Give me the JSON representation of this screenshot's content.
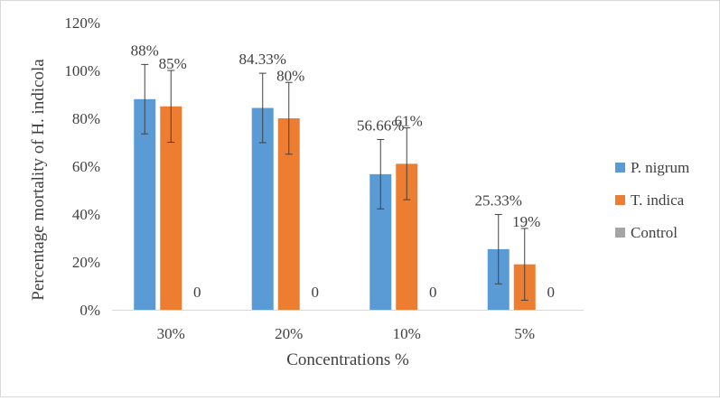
{
  "chart_data": {
    "type": "bar",
    "title": "",
    "xlabel": "Concentrations %",
    "ylabel": "Percentage mortality of H. indicola",
    "categories": [
      "30%",
      "20%",
      "10%",
      "5%"
    ],
    "ylim": [
      0,
      120
    ],
    "y_ticks": [
      0,
      20,
      40,
      60,
      80,
      100,
      120
    ],
    "y_tick_labels": [
      "0%",
      "20%",
      "40%",
      "60%",
      "80%",
      "100%",
      "120%"
    ],
    "grid": false,
    "legend_position": "right",
    "series": [
      {
        "name": "P. nigrum",
        "color": "#5b9bd5",
        "values": [
          88,
          84.33,
          56.66,
          25.33
        ],
        "labels": [
          "88%",
          "84.33%",
          "56.66%",
          "25.33%"
        ],
        "errors": [
          14.5,
          14.5,
          14.5,
          14.5
        ]
      },
      {
        "name": "T. indica",
        "color": "#ed7d31",
        "values": [
          85,
          80,
          61,
          19
        ],
        "labels": [
          "85%",
          "80%",
          "61%",
          "19%"
        ],
        "errors": [
          15,
          15,
          15,
          15
        ]
      },
      {
        "name": "Control",
        "color": "#a5a5a5",
        "values": [
          0,
          0,
          0,
          0
        ],
        "labels": [
          "0",
          "0",
          "0",
          "0"
        ],
        "errors": [
          0,
          0,
          0,
          0
        ]
      }
    ]
  }
}
